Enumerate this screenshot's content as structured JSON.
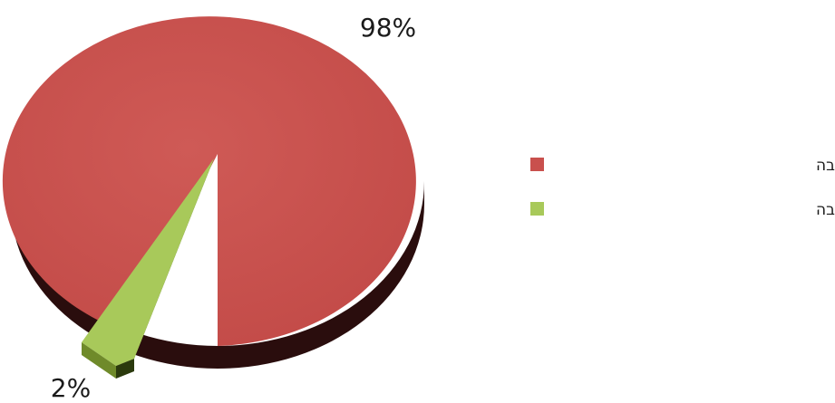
{
  "chart_data": {
    "type": "pie",
    "title": "",
    "slices": [
      {
        "label": "הרשויות שלא קיימו את החובה",
        "value": 98,
        "display": "98%",
        "color": "#c9504d"
      },
      {
        "label": "הרשויות שקיימו את החובה",
        "value": 2,
        "display": "2%",
        "color": "#a8c95a"
      }
    ],
    "legend_position": "right",
    "style": "3d-exploded"
  }
}
